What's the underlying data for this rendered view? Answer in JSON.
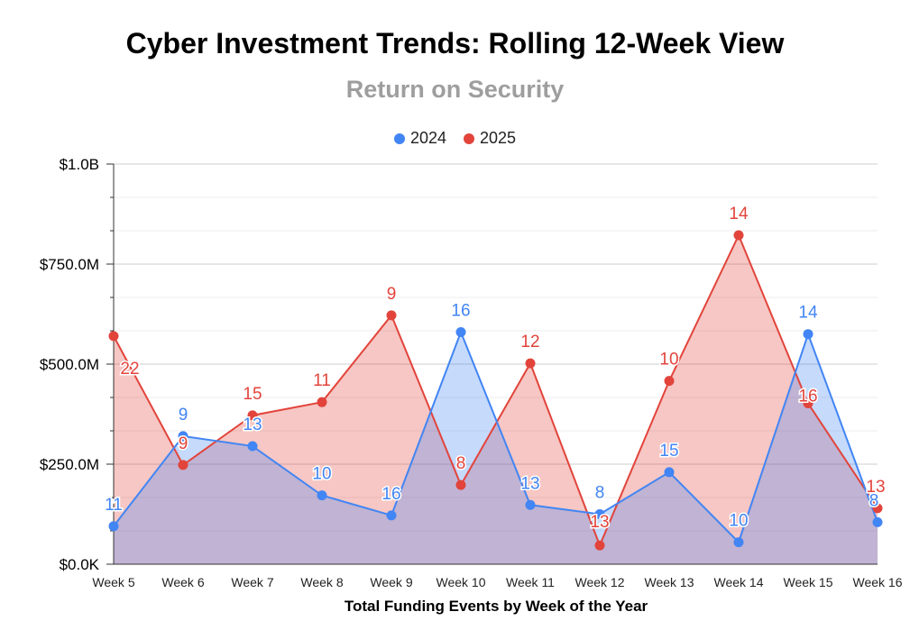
{
  "chart_data": {
    "type": "area",
    "title": "Cyber Investment Trends: Rolling 12-Week View",
    "subtitle": "Return on Security",
    "xlabel": "Total Funding Events by Week of the Year",
    "ylabel": "",
    "categories": [
      "Week 5",
      "Week 6",
      "Week 7",
      "Week 8",
      "Week 9",
      "Week 10",
      "Week 11",
      "Week 12",
      "Week 13",
      "Week 14",
      "Week 15",
      "Week 16"
    ],
    "ylim": [
      0,
      1000
    ],
    "yunit": "millions USD",
    "yticks": [
      0,
      250,
      500,
      750,
      1000
    ],
    "ytick_labels": [
      "$0.0K",
      "$250.0M",
      "$500.0M",
      "$750.0M",
      "$1.0B"
    ],
    "grid": true,
    "legend_position": "top",
    "series": [
      {
        "name": "2024",
        "color": "#4285f4",
        "fill": "rgba(66,133,244,0.30)",
        "values": [
          95,
          320,
          295,
          172,
          122,
          580,
          148,
          125,
          230,
          55,
          575,
          105
        ],
        "labels": [
          "11",
          "9",
          "13",
          "10",
          "16",
          "16",
          "13",
          "8",
          "15",
          "10",
          "14",
          "8"
        ]
      },
      {
        "name": "2025",
        "color": "#e2443b",
        "fill": "rgba(226,68,59,0.30)",
        "values": [
          570,
          248,
          372,
          405,
          622,
          198,
          502,
          47,
          458,
          822,
          402,
          140
        ],
        "labels": [
          "22",
          "9",
          "15",
          "11",
          "9",
          "8",
          "12",
          "13",
          "10",
          "14",
          "16",
          "13"
        ]
      }
    ]
  }
}
